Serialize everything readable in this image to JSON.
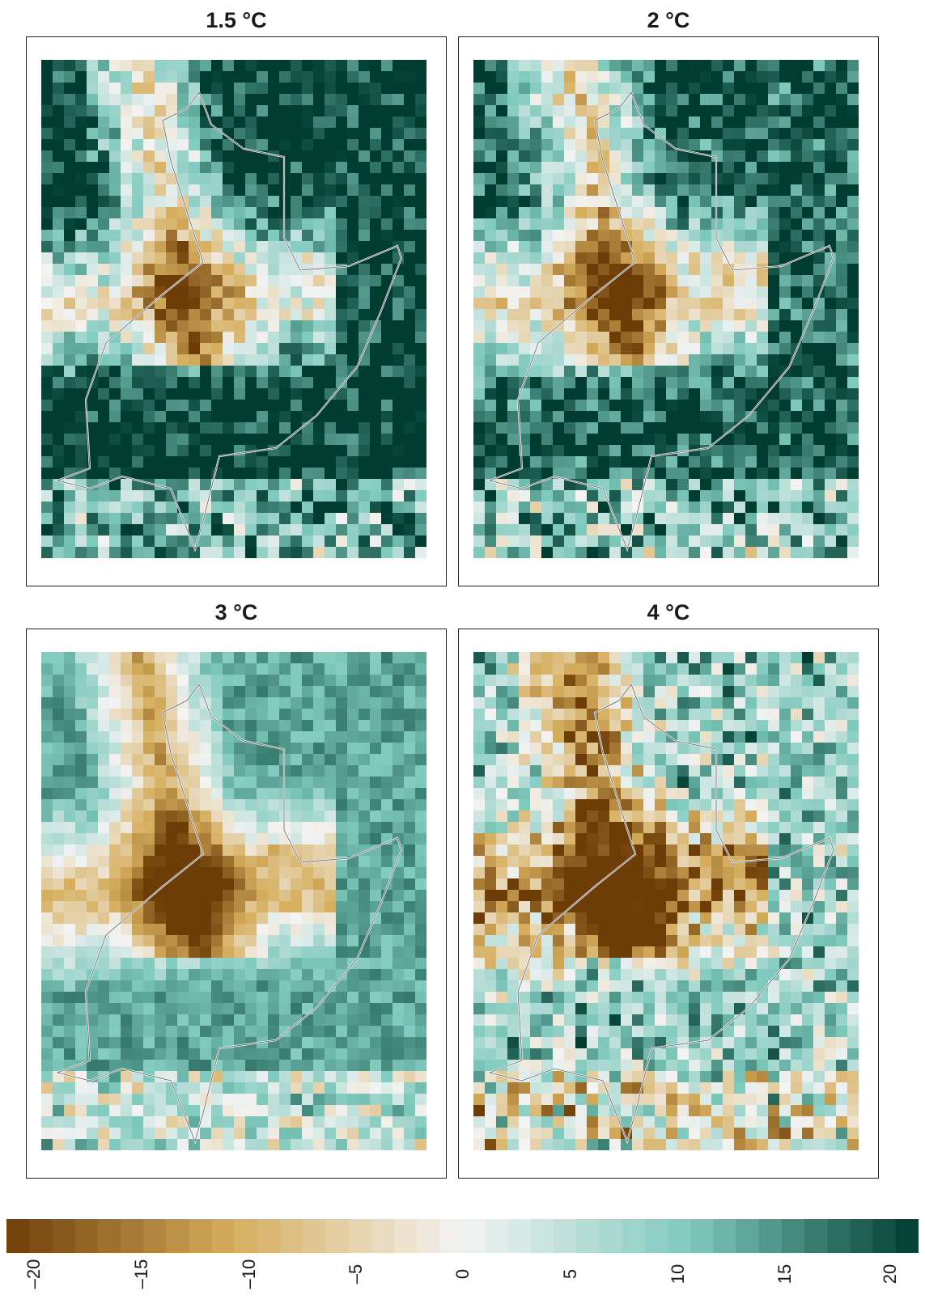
{
  "chart_data": {
    "type": "heatmap",
    "panels": [
      {
        "title": "1.5 °C",
        "warming": 1.5
      },
      {
        "title": "2 °C",
        "warming": 2
      },
      {
        "title": "3 °C",
        "warming": 3
      },
      {
        "title": "4 °C",
        "warming": 4
      }
    ],
    "grid": {
      "columns": 34,
      "rows": 44
    },
    "colorbar": {
      "ticks": [
        "–20",
        "–15",
        "–10",
        "–5",
        "0",
        "5",
        "10",
        "15",
        "20"
      ],
      "tick_values": [
        -20,
        -15,
        -10,
        -5,
        0,
        5,
        10,
        15,
        20
      ],
      "range": [
        -20,
        20
      ],
      "colors": {
        "negative": "#6e3d07",
        "mid_negative": "#d6ae5e",
        "near_zero": "#f3f3f3",
        "mid_positive": "#7fc9bd",
        "positive": "#003c30"
      }
    },
    "xlabel": "",
    "ylabel": "",
    "legend": "bottom"
  }
}
